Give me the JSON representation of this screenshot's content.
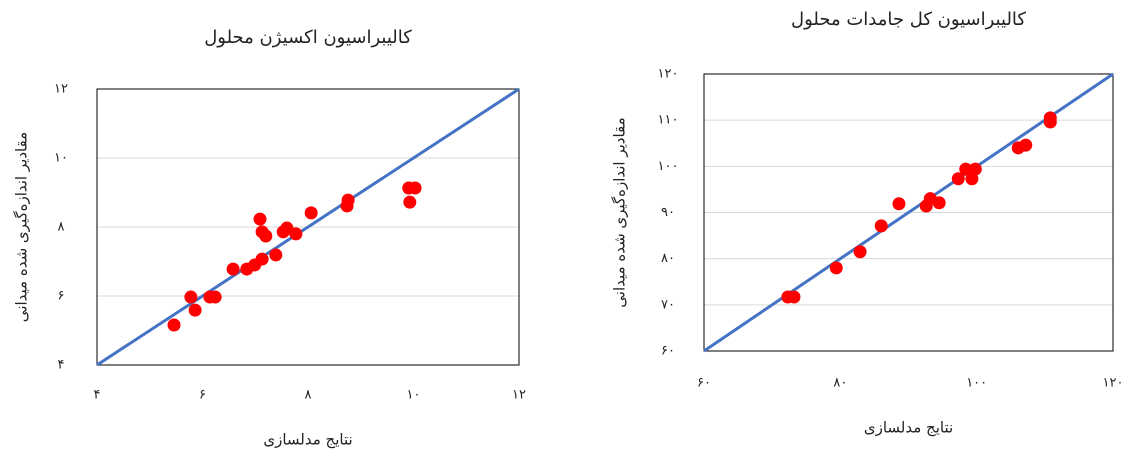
{
  "chart_data": [
    {
      "type": "scatter",
      "title": "کالیبراسیون اکسیژن محلول",
      "x_label": "نتایج مدلسازی",
      "y_label": "مقادیر اندازه‌گیری شده میدانی",
      "color": "#ff0000",
      "reference_line_color": "#4472c4",
      "grid": true,
      "x": [
        5.46,
        5.78,
        5.86,
        6.14,
        6.24,
        6.58,
        6.84,
        6.99,
        7.13,
        7.09,
        7.13,
        7.2,
        7.39,
        7.53,
        7.6,
        7.77,
        8.06,
        8.74,
        8.76,
        9.91,
        10.03,
        9.93
      ],
      "values": [
        5.16,
        5.97,
        5.59,
        5.97,
        5.97,
        6.78,
        6.78,
        6.9,
        7.07,
        8.23,
        7.86,
        7.74,
        7.19,
        7.86,
        7.97,
        7.8,
        8.41,
        8.61,
        8.78,
        9.13,
        9.13,
        8.72
      ],
      "xlim": [
        4,
        12
      ],
      "ylim": [
        4,
        12
      ],
      "xticks": [
        {
          "value": 4,
          "label": "۴"
        },
        {
          "value": 6,
          "label": "۶"
        },
        {
          "value": 8,
          "label": "۸"
        },
        {
          "value": 10,
          "label": "۱۰"
        },
        {
          "value": 12,
          "label": "۱۲"
        }
      ],
      "yticks": [
        {
          "value": 4,
          "label": "۴"
        },
        {
          "value": 6,
          "label": "۶"
        },
        {
          "value": 8,
          "label": "۸"
        },
        {
          "value": 10,
          "label": "۱۰"
        },
        {
          "value": 12,
          "label": "۱۲"
        }
      ]
    },
    {
      "type": "scatter",
      "title": "کالیبراسیون کل جامدات محلول",
      "x_label": "نتایج مدلسازی",
      "y_label": "مقادیر اندازه‌گیری شده میدانی",
      "color": "#ff0000",
      "reference_line_color": "#4472c4",
      "grid": true,
      "x": [
        72.3,
        73.2,
        79.4,
        82.9,
        86.0,
        88.6,
        92.6,
        93.2,
        94.5,
        97.3,
        98.4,
        99.3,
        99.8,
        106.1,
        107.2,
        110.8,
        110.8
      ],
      "values": [
        71.7,
        71.7,
        78.0,
        81.5,
        87.1,
        91.9,
        91.4,
        93.0,
        92.1,
        97.3,
        99.4,
        97.3,
        99.4,
        104.0,
        104.6,
        110.5,
        109.6
      ],
      "xlim": [
        60,
        120
      ],
      "ylim": [
        60,
        120
      ],
      "xticks": [
        {
          "value": 60,
          "label": "۶۰"
        },
        {
          "value": 80,
          "label": "۸۰"
        },
        {
          "value": 100,
          "label": "۱۰۰"
        },
        {
          "value": 120,
          "label": "۱۲۰"
        }
      ],
      "yticks": [
        {
          "value": 60,
          "label": "۶۰"
        },
        {
          "value": 70,
          "label": "۷۰"
        },
        {
          "value": 80,
          "label": "۸۰"
        },
        {
          "value": 90,
          "label": "۹۰"
        },
        {
          "value": 100,
          "label": "۱۰۰"
        },
        {
          "value": 110,
          "label": "۱۱۰"
        },
        {
          "value": 120,
          "label": "۱۲۰"
        }
      ]
    }
  ]
}
